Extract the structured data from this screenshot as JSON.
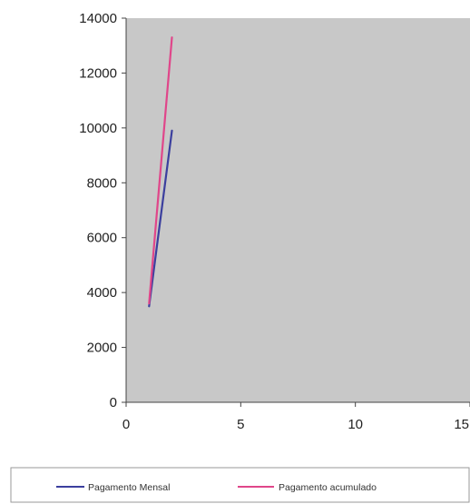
{
  "chart_data": {
    "type": "line",
    "title": "",
    "xlabel": "",
    "ylabel": "",
    "xlim": [
      0,
      15
    ],
    "ylim": [
      0,
      14000
    ],
    "x_ticks": [
      0,
      5,
      10,
      15
    ],
    "y_ticks": [
      0,
      2000,
      4000,
      6000,
      8000,
      10000,
      12000,
      14000
    ],
    "x_tick_labels": [
      "0",
      "5",
      "10",
      "15"
    ],
    "y_tick_labels": [
      "0",
      "2000",
      "4000",
      "6000",
      "8000",
      "10000",
      "12000",
      "14000"
    ],
    "plot_background": "#c8c8c8",
    "grid": false,
    "legend_position": "bottom",
    "series": [
      {
        "name": "Pagamento Mensal",
        "color": "#3b3f9e",
        "x": [
          1,
          2
        ],
        "y": [
          3500,
          9900
        ]
      },
      {
        "name": "Pagamento acumulado",
        "color": "#e0468a",
        "x": [
          1,
          2
        ],
        "y": [
          3600,
          13300
        ]
      }
    ]
  }
}
